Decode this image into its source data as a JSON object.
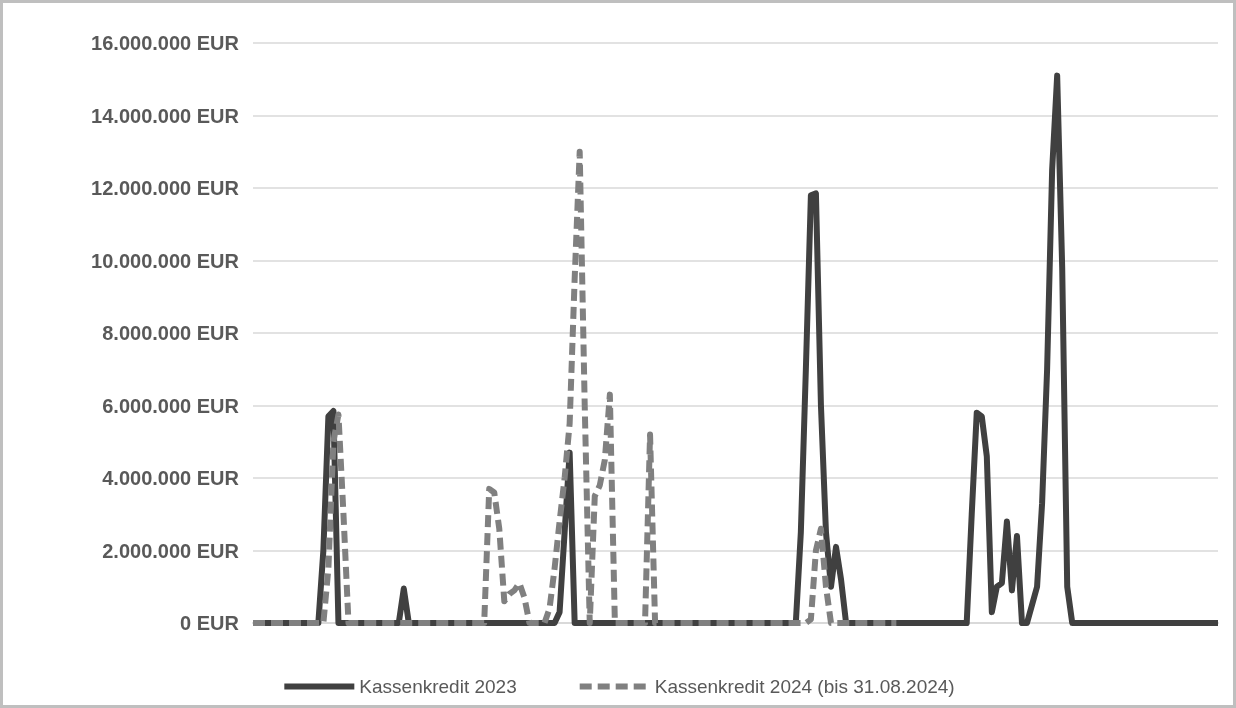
{
  "chart_data": {
    "type": "line",
    "categories": [
      null,
      null,
      null,
      null,
      null,
      null,
      null,
      null,
      null,
      null,
      null,
      null,
      null,
      null,
      null,
      null,
      null,
      null,
      null,
      null,
      null,
      null,
      null,
      null,
      null,
      null,
      null,
      null,
      null,
      null,
      null,
      null,
      null,
      null,
      null,
      null,
      null,
      null,
      null,
      null,
      null,
      null,
      null,
      null,
      null,
      null,
      null,
      null,
      null,
      null,
      null,
      null,
      null,
      null,
      null,
      null,
      null,
      null,
      null,
      null,
      null,
      null,
      null,
      null,
      null,
      null,
      null,
      null,
      null,
      null,
      null,
      null,
      null,
      null,
      null,
      null,
      null,
      null,
      null,
      null,
      null,
      null,
      null,
      null,
      null,
      null,
      null,
      null,
      null,
      null,
      null,
      null,
      null,
      null,
      null,
      null,
      null,
      null,
      null,
      null,
      null,
      null,
      null,
      null,
      null,
      null,
      null,
      null,
      null,
      null,
      null,
      null,
      null,
      null,
      null,
      null,
      null,
      null,
      null,
      null,
      null,
      null,
      null,
      null,
      null,
      null,
      null,
      null,
      null,
      null,
      null,
      null,
      null,
      null,
      null,
      null,
      null,
      null,
      null,
      null,
      null,
      null,
      null,
      null,
      null,
      null,
      null,
      null,
      null,
      null,
      null,
      null,
      null,
      null,
      null,
      null,
      null,
      null,
      null,
      null,
      null,
      null,
      null,
      null,
      null,
      null,
      null,
      null,
      null,
      null,
      null,
      null,
      null,
      null,
      null,
      null,
      null,
      null,
      null,
      null,
      null,
      null,
      null,
      null,
      null,
      null,
      null,
      null,
      null,
      null,
      null,
      null,
      null
    ],
    "series": [
      {
        "name": "Kassenkredit 2023",
        "color": "#404040",
        "line_style": "solid",
        "values": [
          0,
          0,
          0,
          0,
          0,
          0,
          0,
          0,
          0,
          0,
          0,
          0,
          0,
          0,
          2000000,
          5700000,
          5850000,
          0,
          0,
          0,
          0,
          0,
          0,
          0,
          0,
          0,
          0,
          0,
          0,
          0,
          950000,
          0,
          0,
          0,
          0,
          0,
          0,
          0,
          0,
          0,
          0,
          0,
          0,
          0,
          0,
          0,
          0,
          0,
          0,
          0,
          0,
          0,
          0,
          0,
          0,
          0,
          0,
          0,
          0,
          0,
          0,
          300000,
          2500000,
          4700000,
          0,
          0,
          0,
          0,
          0,
          0,
          0,
          0,
          0,
          0,
          0,
          0,
          0,
          0,
          0,
          0,
          0,
          0,
          0,
          0,
          0,
          0,
          0,
          0,
          0,
          0,
          0,
          0,
          0,
          0,
          0,
          0,
          0,
          0,
          0,
          0,
          0,
          0,
          0,
          0,
          0,
          0,
          0,
          0,
          0,
          2500000,
          7000000,
          11800000,
          11850000,
          6000000,
          2500000,
          1000000,
          2100000,
          1200000,
          0,
          0,
          0,
          0,
          0,
          0,
          0,
          0,
          0,
          0,
          0,
          0,
          0,
          0,
          0,
          0,
          0,
          0,
          0,
          0,
          0,
          0,
          0,
          0,
          0,
          3000000,
          5800000,
          5700000,
          4600000,
          300000,
          1000000,
          1100000,
          2800000,
          900000,
          2400000,
          0,
          0,
          500000,
          1000000,
          3300000,
          7000000,
          12500000,
          15100000,
          9800000,
          1000000,
          0,
          0,
          0,
          0,
          0,
          0,
          0,
          0,
          0,
          0,
          0,
          0,
          0,
          0,
          0,
          0,
          0,
          0,
          0,
          0,
          0,
          0,
          0,
          0,
          0,
          0,
          0,
          0,
          0,
          0
        ]
      },
      {
        "name": "Kassenkredit 2024 (bis 31.08.2024)",
        "color": "#808080",
        "line_style": "dashed",
        "values": [
          0,
          0,
          0,
          0,
          0,
          0,
          0,
          0,
          0,
          0,
          0,
          0,
          0,
          0,
          0,
          1500000,
          5000000,
          5750000,
          3000000,
          0,
          0,
          0,
          0,
          0,
          0,
          0,
          0,
          0,
          0,
          0,
          0,
          0,
          0,
          0,
          0,
          0,
          0,
          0,
          0,
          0,
          0,
          0,
          0,
          0,
          0,
          0,
          0,
          3700000,
          3600000,
          2600000,
          600000,
          800000,
          900000,
          1100000,
          700000,
          0,
          0,
          0,
          0,
          400000,
          1500000,
          2800000,
          4000000,
          5500000,
          9500000,
          13000000,
          6000000,
          0,
          3500000,
          3800000,
          4500000,
          6300000,
          0,
          0,
          0,
          0,
          0,
          0,
          0,
          5200000,
          0,
          0,
          0,
          0,
          0,
          0,
          0,
          0,
          0,
          0,
          0,
          0,
          0,
          0,
          0,
          0,
          0,
          0,
          0,
          0,
          0,
          0,
          0,
          0,
          0,
          0,
          0,
          0,
          0,
          0,
          0,
          100000,
          2000000,
          2600000,
          1000000,
          0,
          0,
          0,
          0,
          0,
          0,
          0,
          0,
          0,
          0,
          0,
          0,
          0,
          0,
          null,
          null,
          null,
          null,
          null,
          null,
          null,
          null,
          null,
          null,
          null,
          null,
          null,
          null,
          null,
          null,
          null,
          null,
          null,
          null,
          null,
          null,
          null,
          null,
          null,
          null,
          null,
          null,
          null,
          null,
          null,
          null,
          null,
          null,
          null,
          null,
          null,
          null,
          null,
          null,
          null,
          null,
          null,
          null,
          null,
          null,
          null,
          null,
          null,
          null,
          null,
          null,
          null,
          null,
          null,
          null,
          null,
          null,
          null,
          null,
          null,
          null,
          null,
          null
        ]
      }
    ],
    "ylim": [
      0,
      16000000
    ],
    "yticks": [
      {
        "value": 0,
        "label": "0 EUR"
      },
      {
        "value": 2000000,
        "label": "2.000.000 EUR"
      },
      {
        "value": 4000000,
        "label": "4.000.000 EUR"
      },
      {
        "value": 6000000,
        "label": "6.000.000 EUR"
      },
      {
        "value": 8000000,
        "label": "8.000.000 EUR"
      },
      {
        "value": 10000000,
        "label": "10.000.000 EUR"
      },
      {
        "value": 12000000,
        "label": "12.000.000 EUR"
      },
      {
        "value": 14000000,
        "label": "14.000.000 EUR"
      },
      {
        "value": 16000000,
        "label": "16.000.000 EUR"
      }
    ],
    "grid": "y",
    "legend": "bottom",
    "marker": "none"
  }
}
